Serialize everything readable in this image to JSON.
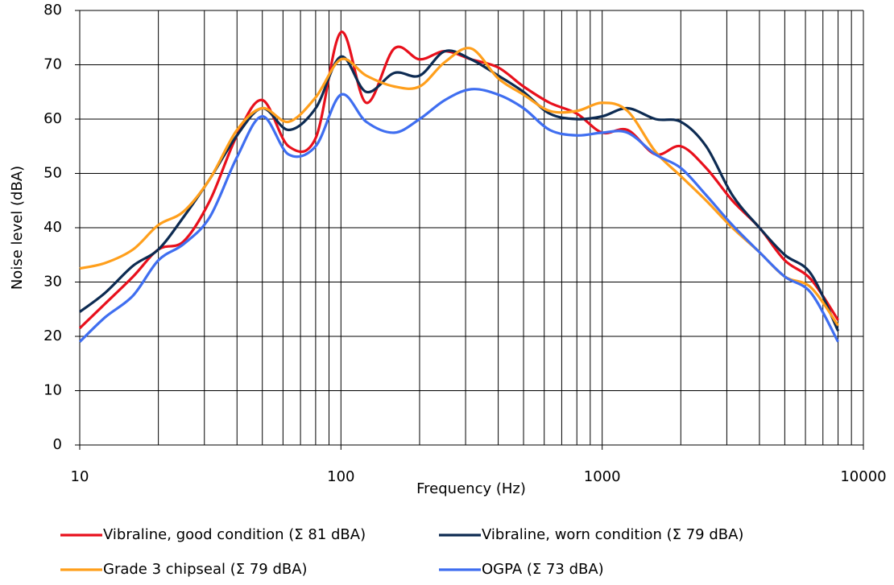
{
  "chart_data": {
    "type": "line",
    "xlabel": "Frequency (Hz)",
    "ylabel": "Noise level (dBA)",
    "xscale": "log",
    "grid": true,
    "legend": "bottom",
    "x": [
      10,
      12.5,
      16,
      20,
      25,
      31.5,
      40,
      50,
      63,
      80,
      100,
      125,
      160,
      200,
      250,
      315,
      400,
      500,
      630,
      800,
      1000,
      1250,
      1600,
      2000,
      2500,
      3150,
      4000,
      5000,
      6300,
      8000
    ],
    "xlim": [
      10,
      10000
    ],
    "xticks": [
      10,
      100,
      1000,
      10000
    ],
    "x_minor_grid": [
      20,
      30,
      40,
      50,
      60,
      70,
      80,
      90,
      200,
      300,
      400,
      500,
      600,
      700,
      800,
      900,
      2000,
      3000,
      4000,
      5000,
      6000,
      7000,
      8000,
      9000
    ],
    "ylim": [
      0,
      80
    ],
    "yticks": [
      0,
      10,
      20,
      30,
      40,
      50,
      60,
      70,
      80
    ],
    "series": [
      {
        "name": "Vibraline, good condition (Σ 81 dBA)",
        "color": "#e8101c",
        "values": [
          21.5,
          26,
          31,
          36,
          37.5,
          45,
          57,
          63.5,
          55,
          56.5,
          76,
          63,
          73,
          71,
          72.5,
          71,
          69.5,
          66,
          63,
          61,
          57.5,
          58,
          53.5,
          55,
          51,
          45,
          40,
          34,
          30.5,
          23
        ]
      },
      {
        "name": "Vibraline, worn condition (Σ 79 dBA)",
        "color": "#0d2b52",
        "values": [
          24.5,
          28,
          33,
          36,
          42,
          49,
          57,
          62,
          58,
          62,
          71.5,
          65,
          68.5,
          68,
          72.5,
          71,
          68,
          65,
          61,
          60,
          60.5,
          62,
          60,
          59.5,
          55,
          46,
          40,
          35,
          31.5,
          21
        ]
      },
      {
        "name": "Grade 3 chipseal (Σ 79 dBA)",
        "color": "#ff9f1c",
        "values": [
          32.5,
          33.5,
          36,
          40.5,
          43,
          49,
          58,
          62,
          59.5,
          64,
          71,
          68,
          66,
          66,
          70.5,
          73,
          67.5,
          64.5,
          61.5,
          61.5,
          63,
          61.5,
          54,
          49.5,
          45,
          40,
          35.5,
          31,
          29,
          22
        ]
      },
      {
        "name": "OGPA (Σ 73 dBA)",
        "color": "#3f6ef0",
        "values": [
          19,
          23.5,
          27.5,
          34,
          37,
          42,
          53,
          60.5,
          53.5,
          55,
          64.5,
          59.5,
          57.5,
          60,
          63.5,
          65.5,
          64.5,
          62,
          58,
          57,
          57.5,
          57.5,
          53.5,
          51,
          46,
          40.5,
          35.5,
          31,
          28,
          19
        ]
      }
    ]
  }
}
